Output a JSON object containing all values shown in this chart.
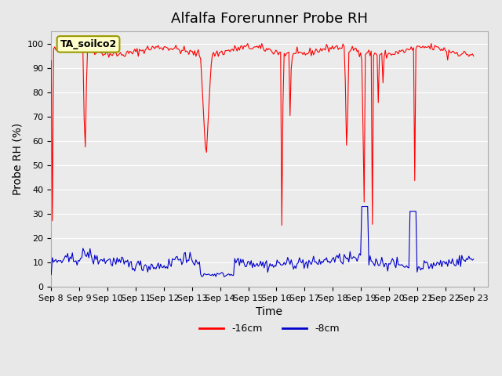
{
  "title": "Alfalfa Forerunner Probe RH",
  "ylabel": "Probe RH (%)",
  "xlabel": "Time",
  "annotation": "TA_soilco2",
  "ylim": [
    0,
    105
  ],
  "yticks": [
    0,
    10,
    20,
    30,
    40,
    50,
    60,
    70,
    80,
    90,
    100
  ],
  "xlim_days": [
    0,
    15.5
  ],
  "xtick_labels": [
    "Sep 8",
    "Sep 9",
    "Sep 10",
    "Sep 11",
    "Sep 12",
    "Sep 13",
    "Sep 14",
    "Sep 15",
    "Sep 16",
    "Sep 17",
    "Sep 18",
    "Sep 19",
    "Sep 20",
    "Sep 21",
    "Sep 22",
    "Sep 23"
  ],
  "bg_color": "#e8e8e8",
  "plot_bg_color": "#f0f0f0",
  "red_color": "#ff0000",
  "blue_color": "#0000cc",
  "legend_red_label": "-16cm",
  "legend_blue_label": "-8cm",
  "title_fontsize": 13,
  "axis_label_fontsize": 10,
  "tick_fontsize": 8
}
